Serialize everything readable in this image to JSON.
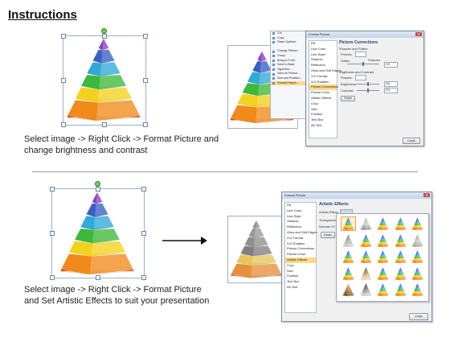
{
  "title": "Instructions",
  "steps": [
    {
      "text": "Select image -> Right Click -> Format Picture and change brightness and contrast"
    },
    {
      "text": "Select image -> Right Click -> Format Picture and Set Artistic Effects to suit your presentation"
    }
  ],
  "context_menu": {
    "items": [
      "Cut",
      "Copy",
      "Paste Options:",
      "",
      "Change Picture...",
      "Group",
      "Bring to Front",
      "Send to Back",
      "Hyperlink...",
      "Save as Picture...",
      "Size and Position...",
      "Format Picture..."
    ]
  },
  "format_dialog_1": {
    "title": "Format Picture",
    "close_label": "Close",
    "nav": [
      "Fill",
      "Line Color",
      "Line Style",
      "Shadow",
      "Reflection",
      "Glow and Soft Edges",
      "3-D Format",
      "3-D Rotation",
      "Picture Corrections",
      "Picture Color",
      "Artistic Effects",
      "Crop",
      "Size",
      "Position",
      "Text Box",
      "Alt Text"
    ],
    "selected_nav": "Picture Corrections",
    "pane": {
      "heading": "Picture Corrections",
      "sharpen_section": "Sharpen and Soften",
      "presets_label": "Presets:",
      "soften_label": "Soften",
      "sharpen_label": "Sharpen",
      "sharpen_value": "0%",
      "bc_section": "Brightness and Contrast",
      "brightness_label": "Brightness:",
      "brightness_value": "0%",
      "contrast_label": "Contrast:",
      "contrast_value": "0%",
      "reset_label": "Reset"
    }
  },
  "format_dialog_2": {
    "title": "Format Picture",
    "close_label": "Close",
    "nav": [
      "Fill",
      "Line Color",
      "Line Style",
      "Shadow",
      "Reflection",
      "Glow and Soft Edges",
      "3-D Format",
      "3-D Rotation",
      "Picture Corrections",
      "Picture Color",
      "Artistic Effects",
      "Crop",
      "Size",
      "Position",
      "Text Box",
      "Alt Text"
    ],
    "selected_nav": "Artistic Effects",
    "pane": {
      "heading": "Artistic Effects",
      "effect_label": "Artistic Effect:",
      "transparency_label": "Transparency:",
      "number_label": "Number Of Shad",
      "reset_label": "Reset"
    }
  },
  "colors": {
    "menu_highlight": "#fcd98a",
    "pyramid_layers": [
      "#8a3fc4",
      "#3a5fc4",
      "#2fa9d6",
      "#3cb83a",
      "#f2d21e",
      "#f08a1a",
      "#d42a1a"
    ]
  }
}
